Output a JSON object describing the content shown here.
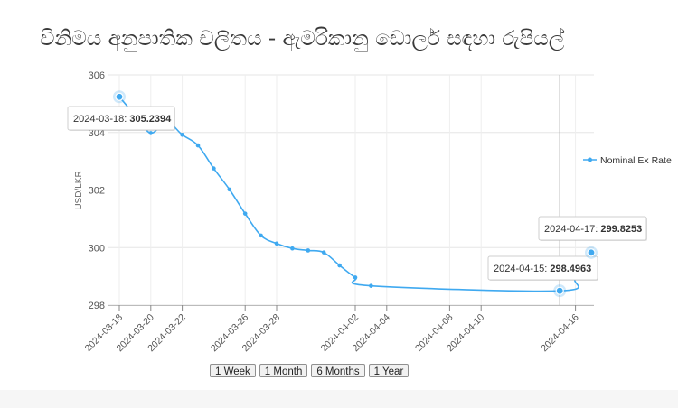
{
  "page": {
    "title": "විනිමය අනුපාතික චලිතය - ඇමරිකානු ඩොලර් සඳහා රුපියල්"
  },
  "chart_data": {
    "type": "line",
    "title": "විනිමය අනුපාතික චලිතය - ඇමරිකානු ඩොලර් සඳහා රුපියල්",
    "ylabel": "USD/LKR",
    "xlabel": "",
    "ylim": [
      298,
      306
    ],
    "yticks": [
      298,
      300,
      302,
      304,
      306
    ],
    "xlim": [
      "2024-03-18",
      "2024-04-17"
    ],
    "xtick_labels": [
      "2024-03-18",
      "2024-03-20",
      "2024-03-22",
      "2024-03-26",
      "2024-03-28",
      "2024-04-02",
      "2024-04-04",
      "2024-04-08",
      "2024-04-10",
      "2024-04-16"
    ],
    "grid": true,
    "legend": {
      "position": "right",
      "entries": [
        "Nominal Ex Rate"
      ]
    },
    "series": [
      {
        "name": "Nominal Ex Rate",
        "color": "#3fa9f0",
        "points": [
          {
            "x": "2024-03-18",
            "y": 305.2394
          },
          {
            "x": "2024-03-19",
            "y": 304.6
          },
          {
            "x": "2024-03-20",
            "y": 303.98
          },
          {
            "x": "2024-03-21",
            "y": 304.38
          },
          {
            "x": "2024-03-22",
            "y": 303.92
          },
          {
            "x": "2024-03-23",
            "y": 303.55
          },
          {
            "x": "2024-03-24",
            "y": 302.75
          },
          {
            "x": "2024-03-25",
            "y": 302.02
          },
          {
            "x": "2024-03-26",
            "y": 301.18
          },
          {
            "x": "2024-03-27",
            "y": 300.42
          },
          {
            "x": "2024-03-28",
            "y": 300.14
          },
          {
            "x": "2024-03-29",
            "y": 299.97
          },
          {
            "x": "2024-03-30",
            "y": 299.9
          },
          {
            "x": "2024-03-31",
            "y": 299.83
          },
          {
            "x": "2024-04-01",
            "y": 299.38
          },
          {
            "x": "2024-04-02",
            "y": 298.96
          },
          {
            "x": "2024-04-03",
            "y": 298.67
          },
          {
            "x": "2024-04-15",
            "y": 298.4963
          },
          {
            "x": "2024-04-16",
            "y": 298.95
          },
          {
            "x": "2024-04-17",
            "y": 299.8253
          }
        ]
      }
    ],
    "tooltips": [
      {
        "date": "2024-03-18",
        "value": "305.2394"
      },
      {
        "date": "2024-04-15",
        "value": "298.4963"
      },
      {
        "date": "2024-04-17",
        "value": "299.8253"
      }
    ]
  },
  "range_buttons": [
    "1 Week",
    "1 Month",
    "6 Months",
    "1 Year"
  ]
}
